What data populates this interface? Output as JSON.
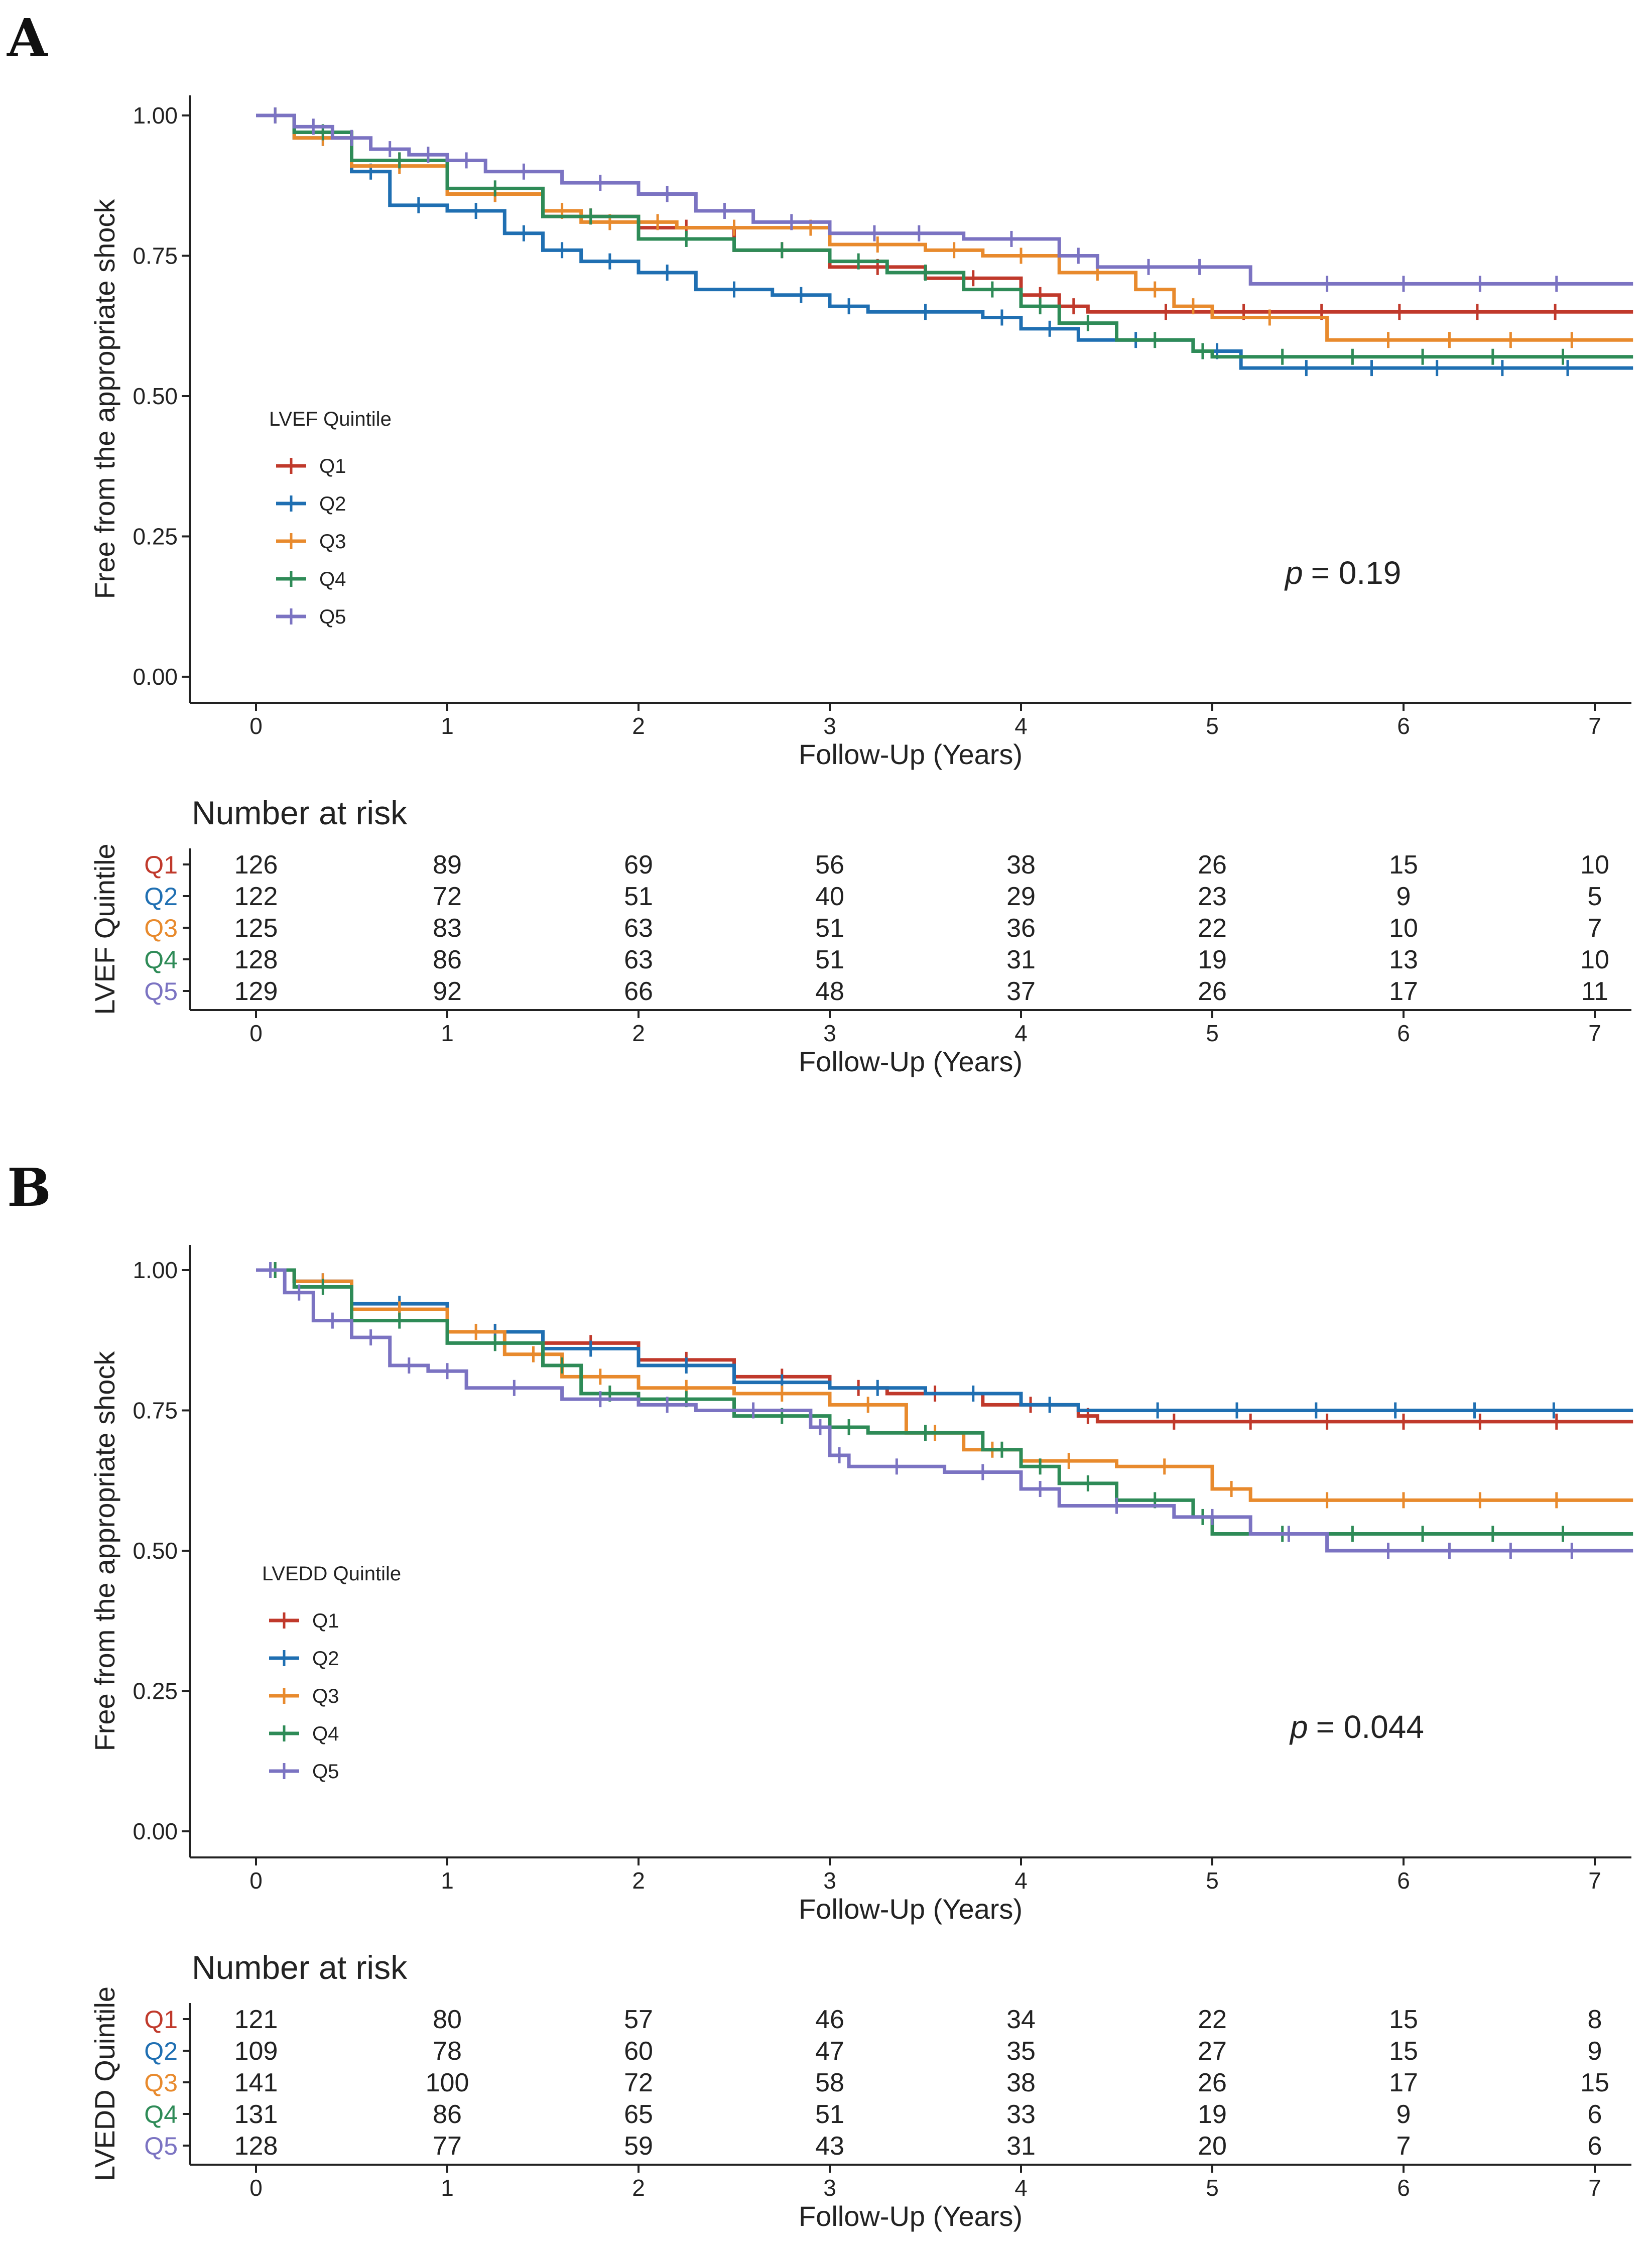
{
  "colors": {
    "Q1": "#c0392b",
    "Q2": "#1f6fb2",
    "Q3": "#e88a2d",
    "Q4": "#2e8b57",
    "Q5": "#7b73c2",
    "axis": "#222222"
  },
  "chart_data": [
    {
      "type": "line",
      "subtype": "kaplan-meier",
      "panel_label": "A",
      "xlabel": "Follow-Up (Years)",
      "ylabel": "Free from the appropriate shock",
      "xlim": [
        0,
        7
      ],
      "ylim": [
        0,
        1
      ],
      "x_ticks": [
        "0",
        "1",
        "2",
        "3",
        "4",
        "5",
        "6",
        "7"
      ],
      "y_ticks": [
        "0.00",
        "0.25",
        "0.50",
        "0.75",
        "1.00"
      ],
      "legend_title": "LVEF Quintile",
      "legend_position": "left-middle",
      "p_prefix": "p",
      "p_value": "= 0.19",
      "series": [
        {
          "name": "Q1",
          "points": [
            [
              0,
              1.0
            ],
            [
              0.2,
              0.97
            ],
            [
              0.5,
              0.92
            ],
            [
              1.0,
              0.86
            ],
            [
              1.5,
              0.82
            ],
            [
              2.0,
              0.8
            ],
            [
              2.5,
              0.76
            ],
            [
              3.0,
              0.73
            ],
            [
              3.5,
              0.71
            ],
            [
              4.0,
              0.68
            ],
            [
              4.2,
              0.66
            ],
            [
              4.35,
              0.65
            ],
            [
              7.2,
              0.65
            ]
          ]
        },
        {
          "name": "Q2",
          "points": [
            [
              0,
              1.0
            ],
            [
              0.2,
              0.96
            ],
            [
              0.5,
              0.9
            ],
            [
              0.7,
              0.84
            ],
            [
              1.0,
              0.83
            ],
            [
              1.3,
              0.79
            ],
            [
              1.5,
              0.76
            ],
            [
              1.7,
              0.74
            ],
            [
              2.0,
              0.72
            ],
            [
              2.3,
              0.69
            ],
            [
              2.7,
              0.68
            ],
            [
              3.0,
              0.66
            ],
            [
              3.2,
              0.65
            ],
            [
              3.8,
              0.64
            ],
            [
              4.0,
              0.62
            ],
            [
              4.3,
              0.6
            ],
            [
              4.9,
              0.58
            ],
            [
              5.15,
              0.55
            ],
            [
              7.2,
              0.55
            ]
          ]
        },
        {
          "name": "Q3",
          "points": [
            [
              0,
              1.0
            ],
            [
              0.2,
              0.96
            ],
            [
              0.5,
              0.91
            ],
            [
              1.0,
              0.86
            ],
            [
              1.5,
              0.83
            ],
            [
              1.7,
              0.81
            ],
            [
              2.0,
              0.81
            ],
            [
              2.2,
              0.8
            ],
            [
              2.8,
              0.8
            ],
            [
              3.0,
              0.77
            ],
            [
              3.5,
              0.76
            ],
            [
              3.8,
              0.75
            ],
            [
              4.2,
              0.72
            ],
            [
              4.6,
              0.69
            ],
            [
              4.8,
              0.66
            ],
            [
              5.0,
              0.64
            ],
            [
              5.6,
              0.6
            ],
            [
              7.2,
              0.6
            ]
          ]
        },
        {
          "name": "Q4",
          "points": [
            [
              0,
              1.0
            ],
            [
              0.2,
              0.97
            ],
            [
              0.5,
              0.92
            ],
            [
              1.0,
              0.87
            ],
            [
              1.5,
              0.82
            ],
            [
              2.0,
              0.78
            ],
            [
              2.5,
              0.76
            ],
            [
              3.0,
              0.74
            ],
            [
              3.3,
              0.72
            ],
            [
              3.7,
              0.69
            ],
            [
              4.0,
              0.66
            ],
            [
              4.2,
              0.63
            ],
            [
              4.5,
              0.6
            ],
            [
              4.9,
              0.58
            ],
            [
              5.0,
              0.57
            ],
            [
              7.2,
              0.57
            ]
          ]
        },
        {
          "name": "Q5",
          "points": [
            [
              0,
              1.0
            ],
            [
              0.2,
              0.98
            ],
            [
              0.4,
              0.96
            ],
            [
              0.6,
              0.94
            ],
            [
              0.8,
              0.93
            ],
            [
              1.0,
              0.92
            ],
            [
              1.2,
              0.9
            ],
            [
              1.6,
              0.88
            ],
            [
              2.0,
              0.86
            ],
            [
              2.3,
              0.83
            ],
            [
              2.6,
              0.81
            ],
            [
              3.0,
              0.79
            ],
            [
              3.7,
              0.78
            ],
            [
              4.2,
              0.75
            ],
            [
              4.4,
              0.73
            ],
            [
              5.2,
              0.7
            ],
            [
              7.2,
              0.7
            ]
          ]
        }
      ],
      "risk_table": {
        "title": "Number at risk",
        "ylabel": "LVEF Quintile",
        "xlabel": "Follow-Up (Years)",
        "rows": [
          {
            "group": "Q1",
            "values": [
              "126",
              "89",
              "69",
              "56",
              "38",
              "26",
              "15",
              "10"
            ]
          },
          {
            "group": "Q2",
            "values": [
              "122",
              "72",
              "51",
              "40",
              "29",
              "23",
              "9",
              "5"
            ]
          },
          {
            "group": "Q3",
            "values": [
              "125",
              "83",
              "63",
              "51",
              "36",
              "22",
              "10",
              "7"
            ]
          },
          {
            "group": "Q4",
            "values": [
              "128",
              "86",
              "63",
              "51",
              "31",
              "19",
              "13",
              "10"
            ]
          },
          {
            "group": "Q5",
            "values": [
              "129",
              "92",
              "66",
              "48",
              "37",
              "26",
              "17",
              "11"
            ]
          }
        ]
      }
    },
    {
      "type": "line",
      "subtype": "kaplan-meier",
      "panel_label": "B",
      "xlabel": "Follow-Up (Years)",
      "ylabel": "Free from the appropriate shock",
      "xlim": [
        0,
        7
      ],
      "ylim": [
        0,
        1
      ],
      "x_ticks": [
        "0",
        "1",
        "2",
        "3",
        "4",
        "5",
        "6",
        "7"
      ],
      "y_ticks": [
        "0.00",
        "0.25",
        "0.50",
        "0.75",
        "1.00"
      ],
      "legend_title": "LVEDD Quintile",
      "legend_position": "left-middle",
      "p_prefix": "p",
      "p_value": "= 0.044",
      "series": [
        {
          "name": "Q1",
          "points": [
            [
              0,
              1.0
            ],
            [
              0.2,
              0.98
            ],
            [
              0.5,
              0.93
            ],
            [
              1.0,
              0.89
            ],
            [
              1.5,
              0.87
            ],
            [
              2.0,
              0.84
            ],
            [
              2.5,
              0.81
            ],
            [
              3.0,
              0.79
            ],
            [
              3.3,
              0.78
            ],
            [
              3.8,
              0.76
            ],
            [
              4.3,
              0.74
            ],
            [
              4.4,
              0.73
            ],
            [
              7.2,
              0.73
            ]
          ]
        },
        {
          "name": "Q2",
          "points": [
            [
              0,
              1.0
            ],
            [
              0.2,
              0.98
            ],
            [
              0.5,
              0.94
            ],
            [
              1.0,
              0.89
            ],
            [
              1.5,
              0.86
            ],
            [
              2.0,
              0.83
            ],
            [
              2.5,
              0.8
            ],
            [
              3.0,
              0.79
            ],
            [
              3.5,
              0.78
            ],
            [
              4.0,
              0.76
            ],
            [
              4.3,
              0.75
            ],
            [
              7.2,
              0.75
            ]
          ]
        },
        {
          "name": "Q3",
          "points": [
            [
              0,
              1.0
            ],
            [
              0.2,
              0.98
            ],
            [
              0.5,
              0.93
            ],
            [
              1.0,
              0.89
            ],
            [
              1.3,
              0.85
            ],
            [
              1.6,
              0.81
            ],
            [
              2.0,
              0.79
            ],
            [
              2.5,
              0.78
            ],
            [
              3.0,
              0.76
            ],
            [
              3.4,
              0.71
            ],
            [
              3.7,
              0.68
            ],
            [
              4.0,
              0.66
            ],
            [
              4.5,
              0.65
            ],
            [
              5.0,
              0.61
            ],
            [
              5.2,
              0.59
            ],
            [
              7.2,
              0.59
            ]
          ]
        },
        {
          "name": "Q4",
          "points": [
            [
              0,
              1.0
            ],
            [
              0.2,
              0.97
            ],
            [
              0.5,
              0.91
            ],
            [
              1.0,
              0.87
            ],
            [
              1.5,
              0.83
            ],
            [
              1.7,
              0.78
            ],
            [
              2.0,
              0.77
            ],
            [
              2.5,
              0.74
            ],
            [
              3.0,
              0.72
            ],
            [
              3.2,
              0.71
            ],
            [
              3.8,
              0.68
            ],
            [
              4.0,
              0.65
            ],
            [
              4.2,
              0.62
            ],
            [
              4.5,
              0.59
            ],
            [
              4.9,
              0.56
            ],
            [
              5.0,
              0.53
            ],
            [
              7.2,
              0.53
            ]
          ]
        },
        {
          "name": "Q5",
          "points": [
            [
              0,
              1.0
            ],
            [
              0.15,
              0.96
            ],
            [
              0.3,
              0.91
            ],
            [
              0.5,
              0.88
            ],
            [
              0.7,
              0.83
            ],
            [
              0.9,
              0.82
            ],
            [
              1.1,
              0.79
            ],
            [
              1.6,
              0.77
            ],
            [
              2.0,
              0.76
            ],
            [
              2.3,
              0.75
            ],
            [
              2.9,
              0.72
            ],
            [
              3.0,
              0.67
            ],
            [
              3.1,
              0.65
            ],
            [
              3.6,
              0.64
            ],
            [
              4.0,
              0.61
            ],
            [
              4.2,
              0.58
            ],
            [
              4.8,
              0.56
            ],
            [
              5.2,
              0.53
            ],
            [
              5.6,
              0.5
            ],
            [
              7.2,
              0.5
            ]
          ]
        }
      ],
      "risk_table": {
        "title": "Number at risk",
        "ylabel": "LVEDD Quintile",
        "xlabel": "Follow-Up (Years)",
        "rows": [
          {
            "group": "Q1",
            "values": [
              "121",
              "80",
              "57",
              "46",
              "34",
              "22",
              "15",
              "8"
            ]
          },
          {
            "group": "Q2",
            "values": [
              "109",
              "78",
              "60",
              "47",
              "35",
              "27",
              "15",
              "9"
            ]
          },
          {
            "group": "Q3",
            "values": [
              "141",
              "100",
              "72",
              "58",
              "38",
              "26",
              "17",
              "15"
            ]
          },
          {
            "group": "Q4",
            "values": [
              "131",
              "86",
              "65",
              "51",
              "33",
              "19",
              "9",
              "6"
            ]
          },
          {
            "group": "Q5",
            "values": [
              "128",
              "77",
              "59",
              "43",
              "31",
              "20",
              "7",
              "6"
            ]
          }
        ]
      }
    }
  ]
}
